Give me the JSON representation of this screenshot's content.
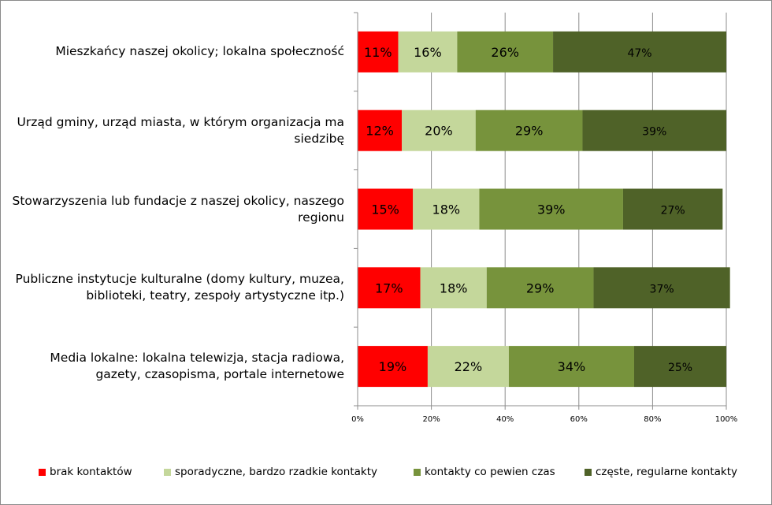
{
  "chart_data": {
    "type": "bar",
    "orientation": "horizontal",
    "stacked": true,
    "percent_stacked": true,
    "categories": [
      "Mieszkańcy naszej okolicy; lokalna społeczność",
      "Urząd gminy, urząd miasta, w którym organizacja ma siedzibę",
      "Stowarzyszenia lub fundacje z naszej okolicy, naszego regionu",
      "Publiczne instytucje kulturalne (domy kultury, muzea, biblioteki, teatry, zespoły artystyczne itp.)",
      "Media lokalne: lokalna telewizja, stacja radiowa, gazety, czasopisma, portale internetowe"
    ],
    "category_lines": [
      [
        "Mieszkańcy naszej okolicy; lokalna społeczność"
      ],
      [
        "Urząd gminy, urząd miasta, w którym organizacja ma",
        "siedzibę"
      ],
      [
        "Stowarzyszenia lub fundacje z naszej okolicy, naszego",
        "regionu"
      ],
      [
        "Publiczne instytucje kulturalne (domy kultury, muzea,",
        "biblioteki, teatry, zespoły artystyczne itp.)"
      ],
      [
        "Media lokalne: lokalna telewizja, stacja radiowa,",
        "gazety, czasopisma, portale internetowe"
      ]
    ],
    "series": [
      {
        "name": "brak kontaktów",
        "color": "#ff0000",
        "values": [
          11,
          12,
          15,
          17,
          19
        ],
        "labels": [
          "11%",
          "12%",
          "15%",
          "17%",
          "19%"
        ]
      },
      {
        "name": "sporadyczne, bardzo rzadkie kontakty",
        "color": "#c4d79b",
        "values": [
          16,
          20,
          18,
          18,
          22
        ],
        "labels": [
          "16%",
          "20%",
          "18%",
          "18%",
          "22%"
        ]
      },
      {
        "name": "kontakty co pewien czas",
        "color": "#77933c",
        "values": [
          26,
          29,
          39,
          29,
          34
        ],
        "labels": [
          "26%",
          "29%",
          "39%",
          "29%",
          "34%"
        ]
      },
      {
        "name": "częste, regularne kontakty",
        "color": "#4f6228",
        "values": [
          47,
          39,
          27,
          37,
          25
        ],
        "labels": [
          "47%",
          "39%",
          "27%",
          "37%",
          "25%"
        ]
      }
    ],
    "x_ticks": [
      "0%",
      "20%",
      "40%",
      "60%",
      "80%",
      "100%"
    ],
    "xlim": [
      0,
      100
    ],
    "grid": "vertical",
    "legend_position": "bottom"
  }
}
